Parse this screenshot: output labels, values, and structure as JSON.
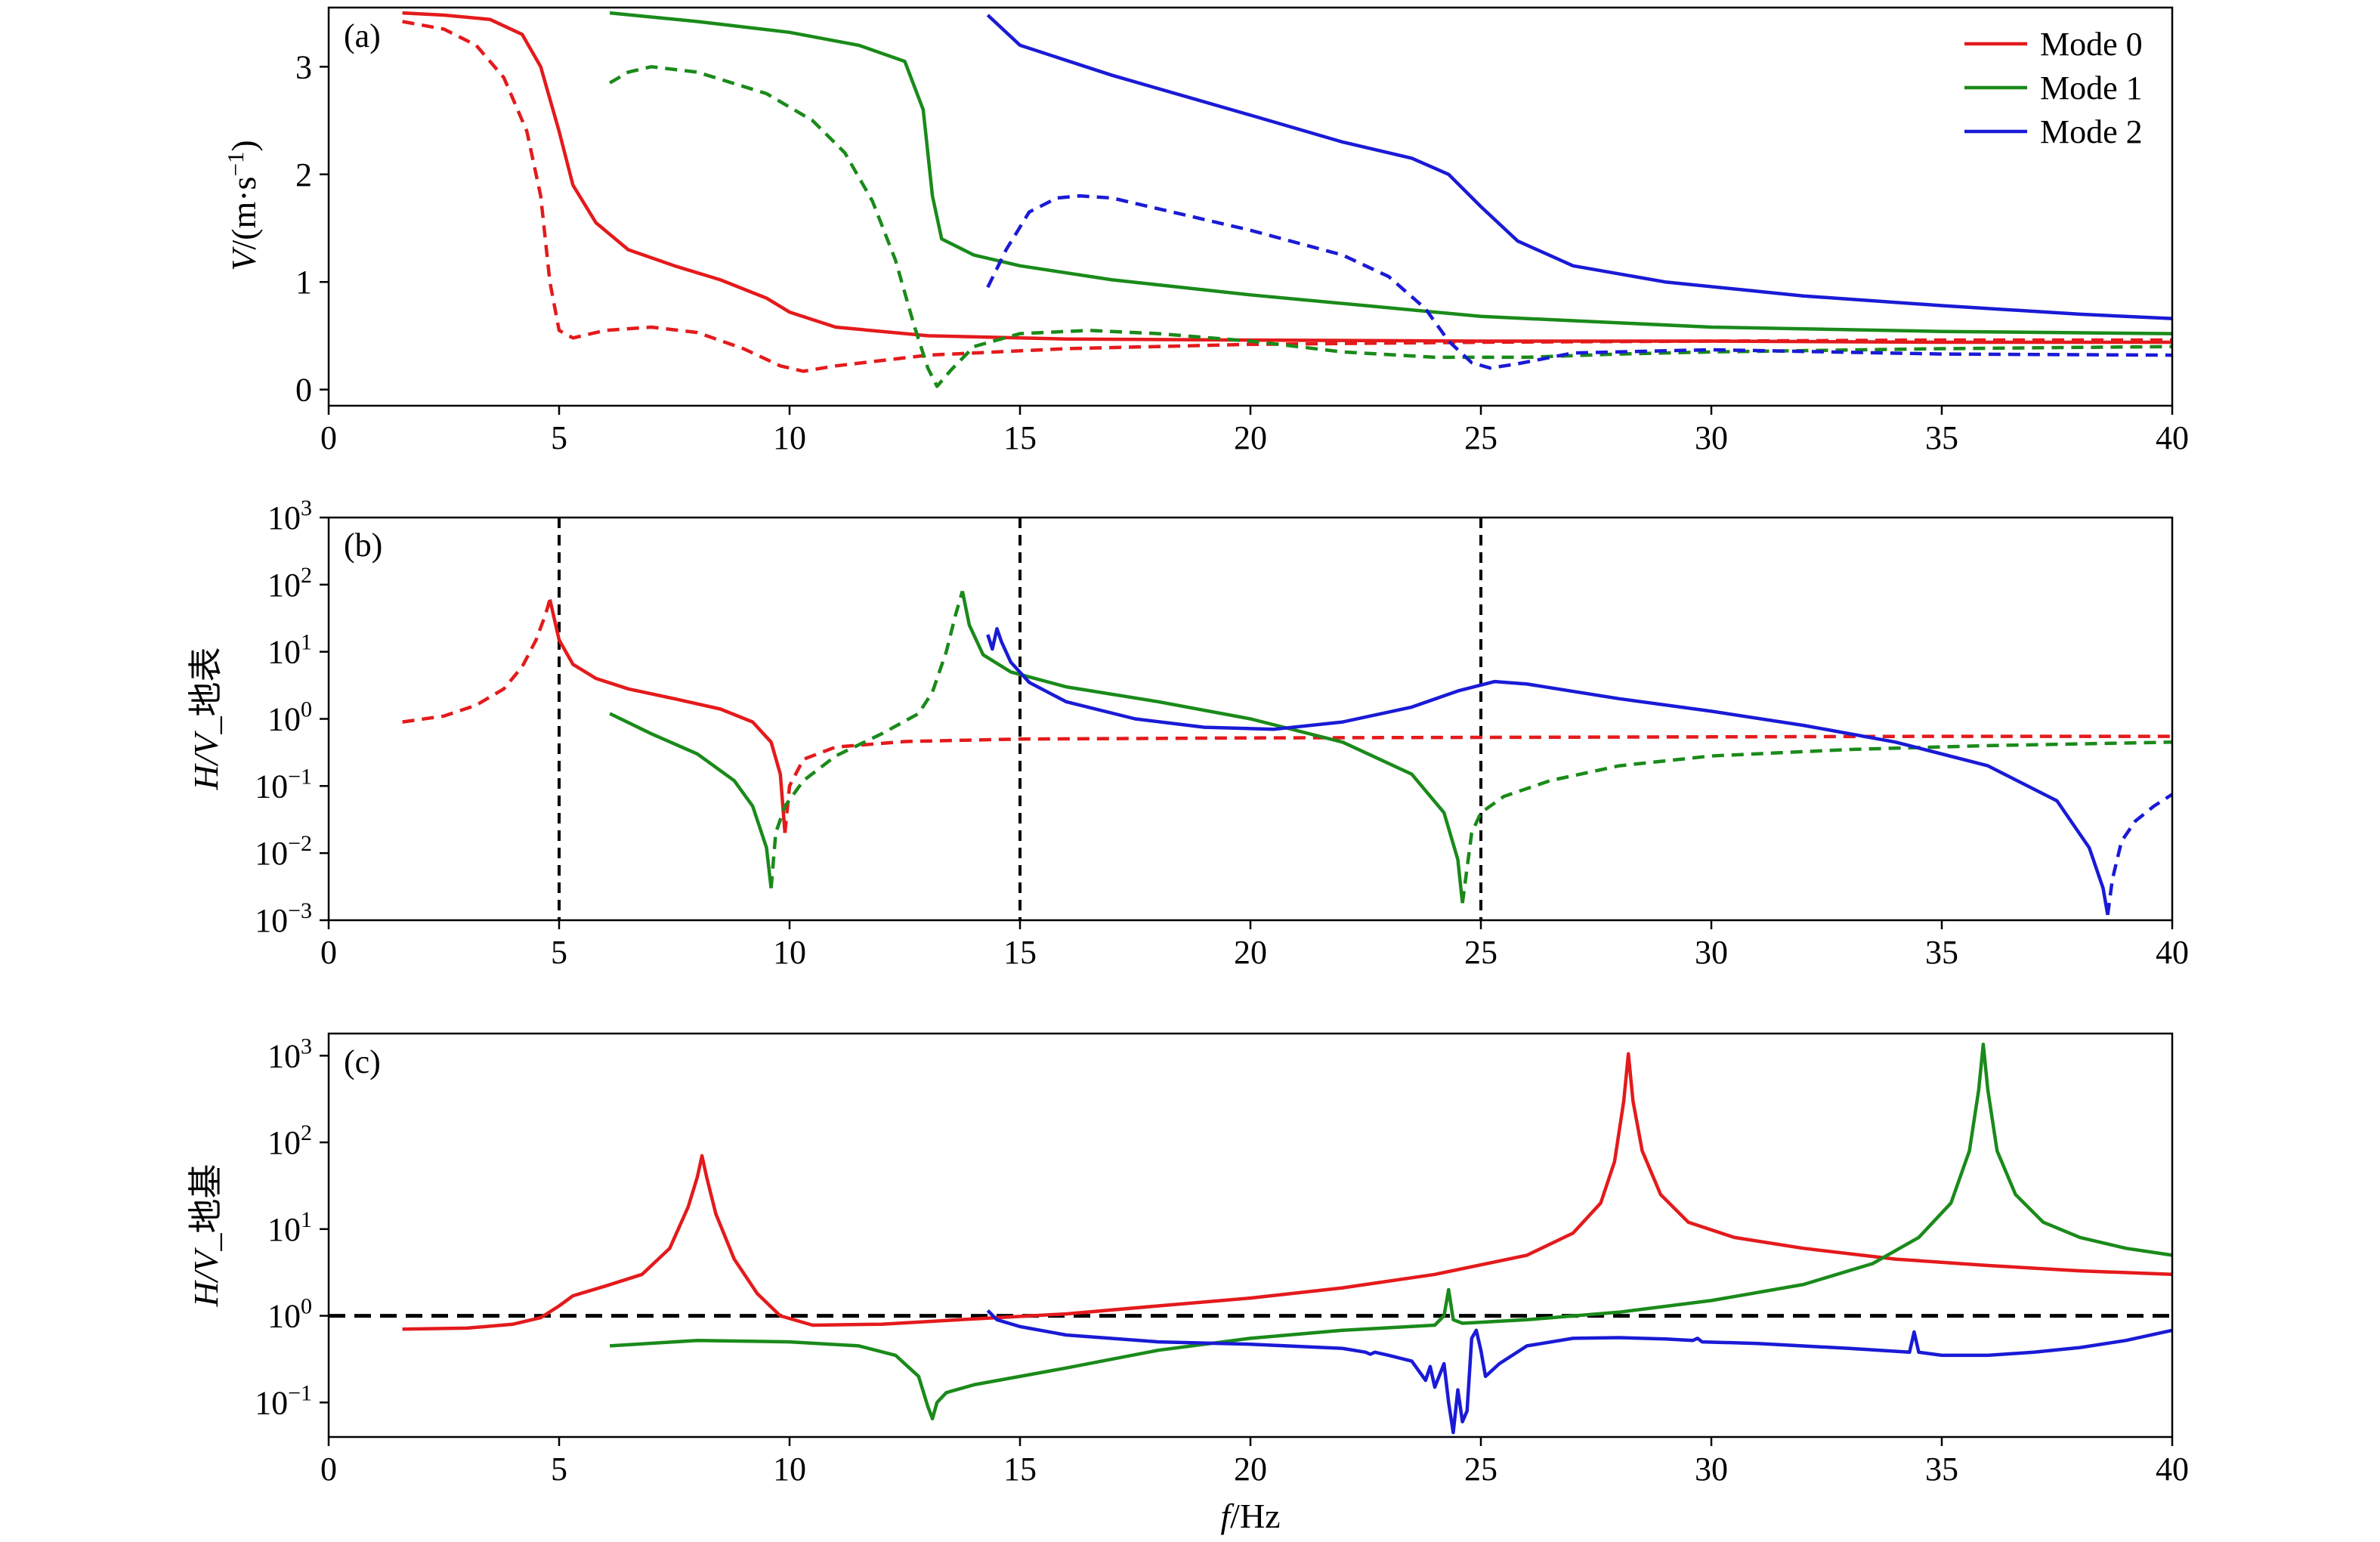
{
  "chart_data": [
    {
      "panel": "(a)",
      "type": "line",
      "ylabel_italic": "V",
      "ylabel_rest": "/(m·s",
      "ylabel_sup": "−1",
      "ylabel_close": ")",
      "xlim": [
        0,
        40
      ],
      "ylim": [
        -0.15,
        3.55
      ],
      "yscale": "linear",
      "xticks": [
        0,
        5,
        10,
        15,
        20,
        25,
        30,
        35,
        40
      ],
      "yticks": [
        0,
        1,
        2,
        3
      ],
      "grid": false,
      "legend": {
        "placement": "top-right",
        "entries": [
          {
            "name": "Mode 0",
            "color": "#e41a1c"
          },
          {
            "name": "Mode 1",
            "color": "#1a8a1a"
          },
          {
            "name": "Mode 2",
            "color": "#1a1ad6"
          }
        ]
      },
      "series": [
        {
          "name": "Mode 0",
          "color": "#e41a1c",
          "style": "solid",
          "x": [
            1.6,
            2.5,
            3.5,
            4.2,
            4.6,
            5.0,
            5.3,
            5.8,
            6.5,
            7.5,
            8.5,
            9.5,
            10.0,
            11.0,
            13.0,
            16.0,
            20.0,
            25.0,
            30.0,
            35.0,
            40.0
          ],
          "y": [
            3.5,
            3.48,
            3.44,
            3.3,
            3.0,
            2.4,
            1.9,
            1.55,
            1.3,
            1.15,
            1.02,
            0.85,
            0.72,
            0.58,
            0.5,
            0.47,
            0.46,
            0.45,
            0.45,
            0.44,
            0.44
          ]
        },
        {
          "name": "Mode 0 (dashed)",
          "color": "#e41a1c",
          "style": "dashed",
          "x": [
            1.6,
            2.5,
            3.2,
            3.8,
            4.3,
            4.6,
            4.8,
            5.0,
            5.3,
            6.0,
            7.0,
            8.0,
            9.0,
            9.8,
            10.3,
            11.0,
            13.0,
            16.0,
            20.0,
            25.0,
            30.0,
            35.0,
            40.0
          ],
          "y": [
            3.42,
            3.35,
            3.2,
            2.9,
            2.4,
            1.8,
            1.0,
            0.55,
            0.48,
            0.55,
            0.58,
            0.53,
            0.38,
            0.22,
            0.17,
            0.22,
            0.32,
            0.38,
            0.42,
            0.44,
            0.45,
            0.46,
            0.46
          ]
        },
        {
          "name": "Mode 1",
          "color": "#1a8a1a",
          "style": "solid",
          "x": [
            6.1,
            8.0,
            10.0,
            11.5,
            12.5,
            12.9,
            13.1,
            13.3,
            14.0,
            15.0,
            17.0,
            20.0,
            25.0,
            30.0,
            35.0,
            40.0
          ],
          "y": [
            3.5,
            3.42,
            3.32,
            3.2,
            3.05,
            2.6,
            1.8,
            1.4,
            1.25,
            1.15,
            1.02,
            0.88,
            0.68,
            0.58,
            0.54,
            0.52
          ]
        },
        {
          "name": "Mode 1 (dashed)",
          "color": "#1a8a1a",
          "style": "dashed",
          "x": [
            6.1,
            6.5,
            7.0,
            8.0,
            9.5,
            10.5,
            11.2,
            11.8,
            12.3,
            12.7,
            13.0,
            13.2,
            13.5,
            14.0,
            15.0,
            16.5,
            18.0,
            20.0,
            22.0,
            24.0,
            26.0,
            28.0,
            30.0,
            35.0,
            40.0
          ],
          "y": [
            2.85,
            2.95,
            3.0,
            2.95,
            2.75,
            2.5,
            2.2,
            1.75,
            1.2,
            0.6,
            0.2,
            0.03,
            0.18,
            0.4,
            0.52,
            0.55,
            0.52,
            0.45,
            0.35,
            0.3,
            0.3,
            0.33,
            0.35,
            0.38,
            0.4
          ]
        },
        {
          "name": "Mode 2",
          "color": "#1a1ad6",
          "style": "solid",
          "x": [
            14.3,
            15.0,
            17.0,
            20.0,
            22.0,
            23.5,
            24.3,
            25.0,
            25.8,
            27.0,
            29.0,
            32.0,
            35.0,
            38.0,
            40.0
          ],
          "y": [
            3.48,
            3.2,
            2.92,
            2.55,
            2.3,
            2.15,
            2.0,
            1.7,
            1.38,
            1.15,
            1.0,
            0.87,
            0.78,
            0.7,
            0.66
          ]
        },
        {
          "name": "Mode 2 (dashed)",
          "color": "#1a1ad6",
          "style": "dashed",
          "x": [
            14.3,
            14.7,
            15.2,
            15.8,
            16.3,
            17.0,
            18.0,
            20.0,
            22.0,
            23.0,
            23.8,
            24.3,
            24.8,
            25.2,
            25.8,
            27.0,
            30.0,
            35.0,
            40.0
          ],
          "y": [
            0.95,
            1.3,
            1.65,
            1.78,
            1.8,
            1.78,
            1.68,
            1.48,
            1.25,
            1.05,
            0.75,
            0.45,
            0.25,
            0.2,
            0.24,
            0.34,
            0.37,
            0.33,
            0.32
          ]
        }
      ]
    },
    {
      "panel": "(b)",
      "type": "line",
      "ylabel_italic": "H/V",
      "ylabel_rest": "_地表",
      "xlim": [
        0,
        40
      ],
      "ylim": [
        0.001,
        1000
      ],
      "yscale": "log",
      "xticks": [
        0,
        5,
        10,
        15,
        20,
        25,
        30,
        35,
        40
      ],
      "yticks": [
        {
          "base": "10",
          "exp": "−3",
          "value": 0.001
        },
        {
          "base": "10",
          "exp": "−2",
          "value": 0.01
        },
        {
          "base": "10",
          "exp": "−1",
          "value": 0.1
        },
        {
          "base": "10",
          "exp": "0",
          "value": 1
        },
        {
          "base": "10",
          "exp": "1",
          "value": 10
        },
        {
          "base": "10",
          "exp": "2",
          "value": 100
        },
        {
          "base": "10",
          "exp": "3",
          "value": 1000
        }
      ],
      "vlines": [
        5,
        15,
        25
      ],
      "grid": false,
      "series": [
        {
          "name": "Mode 0 (dashed)",
          "color": "#e41a1c",
          "style": "dashed",
          "x": [
            1.6,
            2.5,
            3.2,
            3.8,
            4.2,
            4.5,
            4.7,
            4.8
          ],
          "y": [
            0.9,
            1.1,
            1.6,
            2.8,
            6,
            15,
            35,
            60
          ]
        },
        {
          "name": "Mode 0",
          "color": "#e41a1c",
          "style": "solid",
          "x": [
            4.8,
            4.9,
            5.0,
            5.3,
            5.8,
            6.5,
            7.5,
            8.5,
            9.2,
            9.6,
            9.8,
            9.9
          ],
          "y": [
            60,
            30,
            15,
            6.5,
            4.0,
            2.8,
            2.0,
            1.4,
            0.9,
            0.45,
            0.15,
            0.02
          ]
        },
        {
          "name": "Mode 0 (dashed)",
          "color": "#e41a1c",
          "style": "dashed",
          "x": [
            9.9,
            10.0,
            10.3,
            11.0,
            12.5,
            15.0,
            20.0,
            25.0,
            30.0,
            35.0,
            40.0
          ],
          "y": [
            0.02,
            0.1,
            0.25,
            0.38,
            0.46,
            0.5,
            0.52,
            0.53,
            0.54,
            0.55,
            0.55
          ]
        },
        {
          "name": "Mode 1",
          "color": "#1a8a1a",
          "style": "solid",
          "x": [
            6.1,
            7.0,
            8.0,
            8.8,
            9.2,
            9.5,
            9.6
          ],
          "y": [
            1.2,
            0.6,
            0.3,
            0.12,
            0.05,
            0.012,
            0.003
          ]
        },
        {
          "name": "Mode 1 (dashed)",
          "color": "#1a8a1a",
          "style": "dashed",
          "x": [
            9.6,
            9.7,
            9.9,
            10.3,
            11.0,
            12.0,
            12.8,
            13.1,
            13.4,
            13.6,
            13.75
          ],
          "y": [
            0.003,
            0.02,
            0.05,
            0.12,
            0.28,
            0.6,
            1.2,
            2.5,
            10,
            35,
            80
          ]
        },
        {
          "name": "Mode 1",
          "color": "#1a8a1a",
          "style": "solid",
          "x": [
            13.75,
            13.9,
            14.2,
            14.8,
            16.0,
            18.0,
            20.0,
            22.0,
            23.5,
            24.2,
            24.5,
            24.6
          ],
          "y": [
            80,
            25,
            9,
            5,
            3.0,
            1.8,
            1.0,
            0.45,
            0.15,
            0.04,
            0.008,
            0.0018
          ]
        },
        {
          "name": "Mode 1 (dashed)",
          "color": "#1a8a1a",
          "style": "dashed",
          "x": [
            24.6,
            24.8,
            25.0,
            25.5,
            26.5,
            28.0,
            30.0,
            33.0,
            36.0,
            40.0
          ],
          "y": [
            0.0018,
            0.02,
            0.04,
            0.07,
            0.12,
            0.2,
            0.28,
            0.35,
            0.4,
            0.45
          ]
        },
        {
          "name": "Mode 2",
          "color": "#1a1ad6",
          "style": "solid",
          "x": [
            14.3,
            14.4,
            14.5,
            14.6,
            14.8,
            15.2,
            16.0,
            17.5,
            19.0,
            20.5,
            22.0,
            23.5,
            24.5,
            25.3,
            26.0,
            28.0,
            30.0,
            32.0,
            34.0,
            36.0,
            37.5,
            38.2,
            38.5,
            38.6
          ],
          "y": [
            18,
            11,
            22,
            14,
            7,
            3.5,
            1.8,
            1.0,
            0.75,
            0.7,
            0.9,
            1.5,
            2.6,
            3.6,
            3.3,
            2.0,
            1.3,
            0.8,
            0.45,
            0.2,
            0.06,
            0.012,
            0.003,
            0.0012
          ]
        },
        {
          "name": "Mode 2 (dashed)",
          "color": "#1a1ad6",
          "style": "dashed",
          "x": [
            38.6,
            38.7,
            38.9,
            39.2,
            39.6,
            40.0
          ],
          "y": [
            0.0012,
            0.004,
            0.015,
            0.03,
            0.05,
            0.075
          ]
        }
      ]
    },
    {
      "panel": "(c)",
      "type": "line",
      "ylabel_italic": "H/V",
      "ylabel_rest": "_地基",
      "xlabel_italic": "f",
      "xlabel_rest": "/Hz",
      "xlim": [
        0,
        40
      ],
      "ylim": [
        0.04,
        1800
      ],
      "yscale": "log",
      "xticks": [
        0,
        5,
        10,
        15,
        20,
        25,
        30,
        35,
        40
      ],
      "yticks": [
        {
          "base": "10",
          "exp": "−1",
          "value": 0.1
        },
        {
          "base": "10",
          "exp": "0",
          "value": 1
        },
        {
          "base": "10",
          "exp": "1",
          "value": 10
        },
        {
          "base": "10",
          "exp": "2",
          "value": 100
        },
        {
          "base": "10",
          "exp": "3",
          "value": 1000
        }
      ],
      "hline": 1,
      "grid": false,
      "series": [
        {
          "name": "Mode 0",
          "color": "#e41a1c",
          "style": "solid",
          "x": [
            1.6,
            3.0,
            4.0,
            4.6,
            5.0,
            5.3,
            6.0,
            6.8,
            7.4,
            7.8,
            8.0,
            8.1,
            8.2,
            8.4,
            8.8,
            9.3,
            9.8,
            10.5,
            12.0,
            14.0,
            16.0,
            18.0,
            20.0,
            22.0,
            24.0,
            26.0,
            27.0,
            27.6,
            27.9,
            28.1,
            28.2,
            28.3,
            28.5,
            28.9,
            29.5,
            30.5,
            32.0,
            34.0,
            36.0,
            38.0,
            40.0
          ],
          "y": [
            0.7,
            0.72,
            0.8,
            0.95,
            1.3,
            1.7,
            2.2,
            3.0,
            6.0,
            18,
            40,
            70,
            40,
            15,
            4.5,
            1.8,
            1.0,
            0.78,
            0.8,
            0.92,
            1.05,
            1.3,
            1.6,
            2.1,
            3.0,
            5.0,
            9.0,
            20,
            60,
            300,
            1050,
            300,
            80,
            25,
            12,
            8,
            6,
            4.5,
            3.8,
            3.3,
            3.0
          ]
        },
        {
          "name": "Mode 1",
          "color": "#1a8a1a",
          "style": "solid",
          "x": [
            6.1,
            8.0,
            10.0,
            11.5,
            12.3,
            12.8,
            13.0,
            13.1,
            13.2,
            13.4,
            14.0,
            16.0,
            18.0,
            20.0,
            22.0,
            24.0,
            24.2,
            24.3,
            24.4,
            24.6,
            26.0,
            28.0,
            30.0,
            32.0,
            33.5,
            34.5,
            35.2,
            35.6,
            35.8,
            35.9,
            36.0,
            36.2,
            36.6,
            37.2,
            38.0,
            39.0,
            40.0
          ],
          "y": [
            0.45,
            0.52,
            0.5,
            0.45,
            0.35,
            0.2,
            0.09,
            0.065,
            0.1,
            0.13,
            0.16,
            0.25,
            0.4,
            0.55,
            0.68,
            0.78,
            1.0,
            2.0,
            0.9,
            0.82,
            0.9,
            1.1,
            1.5,
            2.3,
            4.0,
            8.0,
            20,
            80,
            400,
            1350,
            400,
            80,
            25,
            12,
            8,
            6,
            5
          ]
        },
        {
          "name": "Mode 2",
          "color": "#1a1ad6",
          "style": "solid",
          "x": [
            14.3,
            14.5,
            15.0,
            16.0,
            18.0,
            20.0,
            22.0,
            22.5,
            22.6,
            22.7,
            23.0,
            23.5,
            23.8,
            23.9,
            24.0,
            24.2,
            24.3,
            24.4,
            24.5,
            24.6,
            24.7,
            24.8,
            24.9,
            25.0,
            25.1,
            25.4,
            26.0,
            27.0,
            28.0,
            29.0,
            29.6,
            29.7,
            29.8,
            31.0,
            33.0,
            34.3,
            34.4,
            34.5,
            35.0,
            36.0,
            37.0,
            38.0,
            39.0,
            40.0
          ],
          "y": [
            1.15,
            0.9,
            0.75,
            0.6,
            0.5,
            0.47,
            0.42,
            0.38,
            0.36,
            0.38,
            0.35,
            0.3,
            0.18,
            0.26,
            0.15,
            0.28,
            0.1,
            0.045,
            0.14,
            0.06,
            0.08,
            0.55,
            0.68,
            0.4,
            0.2,
            0.28,
            0.45,
            0.55,
            0.56,
            0.54,
            0.52,
            0.55,
            0.5,
            0.48,
            0.42,
            0.38,
            0.65,
            0.38,
            0.35,
            0.35,
            0.38,
            0.43,
            0.52,
            0.68
          ]
        }
      ]
    }
  ]
}
